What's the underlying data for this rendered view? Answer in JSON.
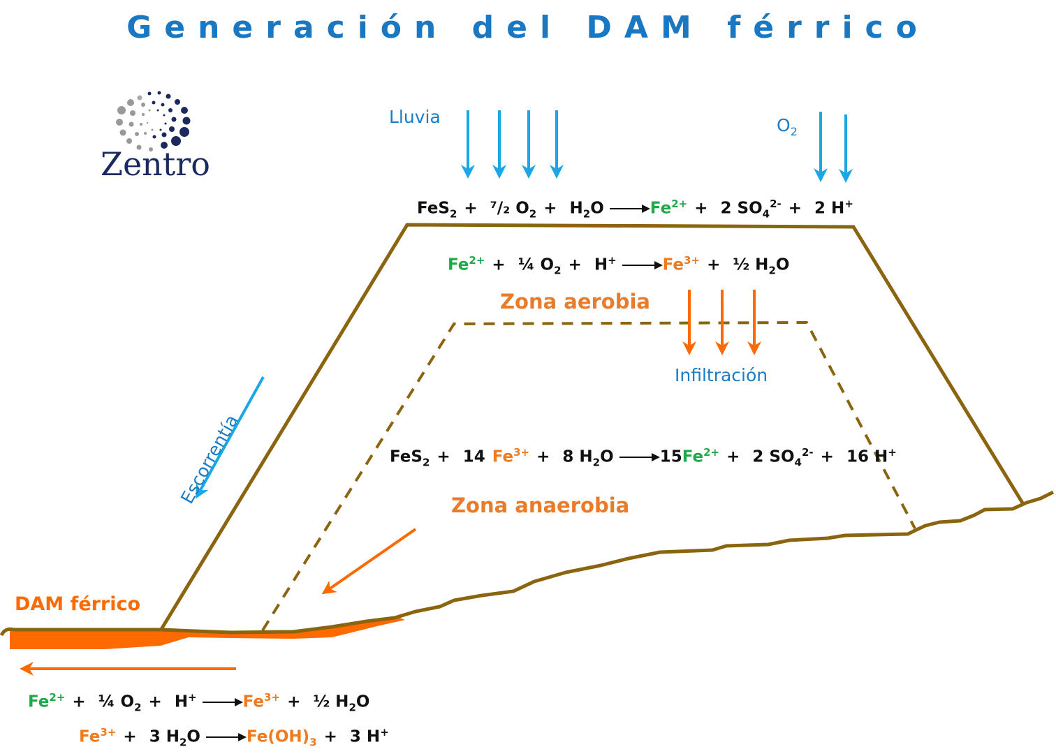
{
  "title": "Generación del DAM férrico",
  "logo": {
    "text": "Zentro",
    "icon": "dotted-circle-logo-icon"
  },
  "labels": {
    "rain": "Lluvia",
    "oxygen_base": "O",
    "oxygen_sub": "2",
    "runoff": "Escorrentía",
    "infiltration": "Infiltración",
    "aerobic_zone": "Zona aerobia",
    "anaerobic_zone": "Zona anaerobia",
    "dam_ferrico": "DAM férrico"
  },
  "equations": {
    "eq1": {
      "t1": "FeS",
      "s1": "2",
      "p1": "+",
      "t2": "⁷/₂ O",
      "s2": "2",
      "p2": "+",
      "t3": "H",
      "s3": "2",
      "t3b": "O",
      "r1": "Fe",
      "r1sup": "2+",
      "p3": "+",
      "r2": "2 SO",
      "r2sub": "4",
      "r2sup": "2-",
      "p4": "+",
      "r3": "2 H",
      "r3sup": "+"
    },
    "eq2": {
      "t1": "Fe",
      "t1sup": "2+",
      "p1": "+",
      "t2": "¼ O",
      "s2": "2",
      "p2": "+",
      "t3": "H",
      "t3sup": "+",
      "r1": "Fe",
      "r1sup": "3+",
      "p3": "+",
      "r2": "½ H",
      "r2sub": "2",
      "r2b": "O"
    },
    "eq3": {
      "t1": "FeS",
      "s1": "2",
      "p1": "+",
      "t2": "14",
      "t2b": "Fe",
      "t2sup": "3+",
      "p2": "+",
      "t3": "8 H",
      "s3": "2",
      "t3b": "O",
      "r1": "15",
      "r1b": "Fe",
      "r1sup": "2+",
      "p3": "+",
      "r2": "2 SO",
      "r2sub": "4",
      "r2sup": "2-",
      "p4": "+",
      "r3": "16 H",
      "r3sup": "+"
    },
    "eq4": {
      "t1": "Fe",
      "t1sup": "2+",
      "p1": "+",
      "t2": "¼ O",
      "s2": "2",
      "p2": "+",
      "t3": "H",
      "t3sup": "+",
      "r1": "Fe",
      "r1sup": "3+",
      "p3": "+",
      "r2": "½ H",
      "r2sub": "2",
      "r2b": "O"
    },
    "eq5": {
      "t1": "Fe",
      "t1sup": "3+",
      "p1": "+",
      "t2": "3 H",
      "s2": "2",
      "t2b": "O",
      "r1": "Fe(OH)",
      "r1sub": "3",
      "p2": "+",
      "r2": "3 H",
      "r2sup": "+"
    }
  },
  "colors": {
    "title": "#1a78c2",
    "rain_arrows": "#1ba7e6",
    "orange_arrows": "#ff6a00",
    "pile_outline": "#8b6410",
    "fe2": "#1faa4a",
    "fe3": "#f07a1e",
    "logo": "#1b2a5e"
  }
}
